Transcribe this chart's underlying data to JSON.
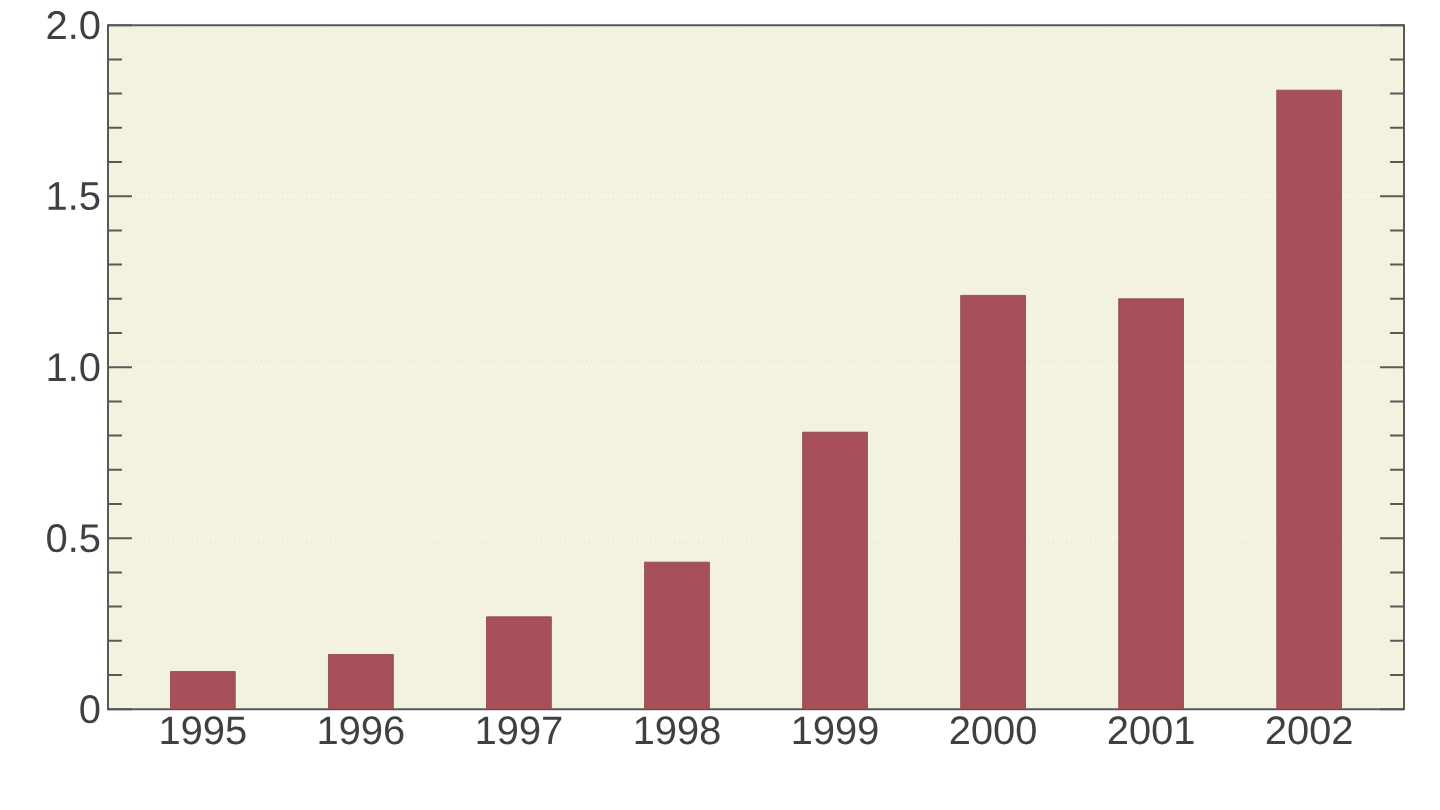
{
  "chart_data": {
    "type": "bar",
    "categories": [
      "1995",
      "1996",
      "1997",
      "1998",
      "1999",
      "2000",
      "2001",
      "2002"
    ],
    "values": [
      0.11,
      0.16,
      0.27,
      0.43,
      0.81,
      1.21,
      1.2,
      1.81
    ],
    "color": "#a8505a",
    "ylim": [
      0,
      2
    ],
    "yticks": [
      0,
      0.5,
      {
        "value": 1,
        "label": "1.0"
      },
      1.5,
      {
        "value": 2,
        "label": "2.0"
      }
    ],
    "grid": "y"
  }
}
